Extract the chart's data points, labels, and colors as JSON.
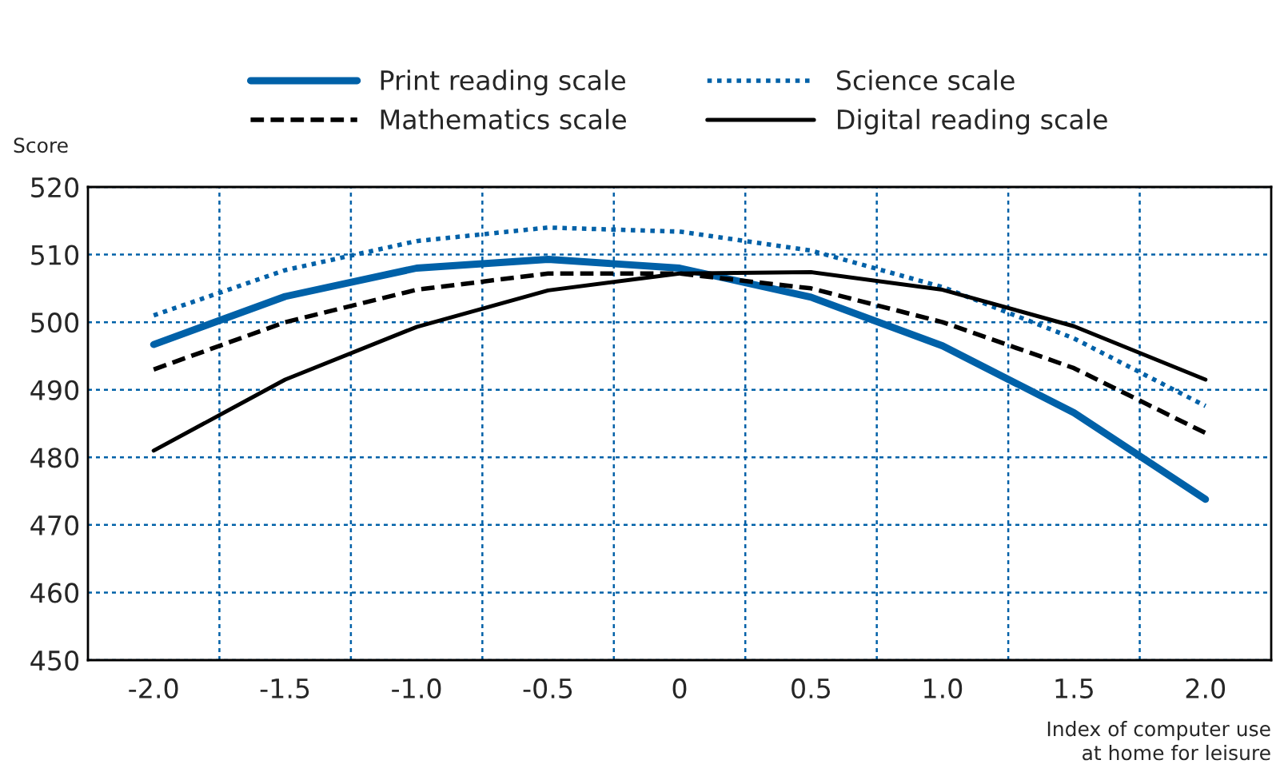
{
  "chart_data": {
    "type": "line",
    "ylabel": "Score",
    "xlabel": "Index of computer use\nat home for leisure",
    "categories": [
      "-2.0",
      "-1.5",
      "-1.0",
      "-0.5",
      "0",
      "0.5",
      "1.0",
      "1.5",
      "2.0"
    ],
    "series": [
      {
        "name": "Print reading scale",
        "color": "#0061a8",
        "line_style": "solid",
        "values": [
          496.7,
          503.8,
          508,
          509.3,
          508,
          503.7,
          496.5,
          486.6,
          473.8
        ]
      },
      {
        "name": "Science scale",
        "color": "#0061a8",
        "line_style": "dotted",
        "values": [
          501,
          507.7,
          512,
          514,
          513.4,
          510.6,
          505.2,
          497.6,
          487.6
        ]
      },
      {
        "name": "Mathematics scale",
        "color": "#000000",
        "line_style": "dashed",
        "values": [
          493,
          500,
          504.8,
          507.2,
          507.2,
          505,
          500,
          493.2,
          483.6
        ]
      },
      {
        "name": "Digital reading scale",
        "color": "#000000",
        "line_style": "solid",
        "values": [
          481,
          491.5,
          499.3,
          504.7,
          507.2,
          507.4,
          504.8,
          499.4,
          491.5
        ]
      }
    ],
    "ylim": [
      450,
      520
    ],
    "yticks": [
      450,
      460,
      470,
      480,
      490,
      500,
      510,
      520
    ],
    "grid": true,
    "legend": "top",
    "marker": "none"
  }
}
